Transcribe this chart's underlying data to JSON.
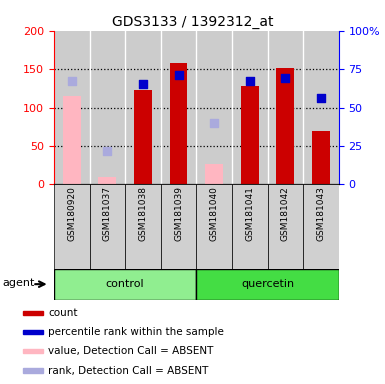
{
  "title": "GDS3133 / 1392312_at",
  "samples": [
    "GSM180920",
    "GSM181037",
    "GSM181038",
    "GSM181039",
    "GSM181040",
    "GSM181041",
    "GSM181042",
    "GSM181043"
  ],
  "count_values": [
    null,
    null,
    123,
    158,
    null,
    128,
    151,
    70
  ],
  "count_absent": [
    115,
    10,
    null,
    null,
    27,
    null,
    null,
    null
  ],
  "rank_values": [
    null,
    null,
    65,
    71,
    null,
    67,
    69,
    56
  ],
  "rank_absent": [
    67,
    22,
    null,
    null,
    40,
    null,
    null,
    null
  ],
  "groups": [
    "control",
    "control",
    "control",
    "control",
    "quercetin",
    "quercetin",
    "quercetin",
    "quercetin"
  ],
  "control_color": "#90EE90",
  "quercetin_color": "#44DD44",
  "ylim_left": [
    0,
    200
  ],
  "ylim_right": [
    0,
    100
  ],
  "yticks_left": [
    0,
    50,
    100,
    150,
    200
  ],
  "yticks_right": [
    0,
    25,
    50,
    75,
    100
  ],
  "yticklabels_right": [
    "0",
    "25",
    "50",
    "75",
    "100%"
  ],
  "bar_color_present": "#CC0000",
  "bar_color_absent": "#FFB6C1",
  "dot_color_present": "#0000CC",
  "dot_color_absent": "#AAAADD",
  "bar_width": 0.5,
  "plot_bg": "#CCCCCC",
  "xtick_bg": "#C0C0C0",
  "legend_items": [
    {
      "label": "count",
      "color": "#CC0000"
    },
    {
      "label": "percentile rank within the sample",
      "color": "#0000CC"
    },
    {
      "label": "value, Detection Call = ABSENT",
      "color": "#FFB6C1"
    },
    {
      "label": "rank, Detection Call = ABSENT",
      "color": "#AAAADD"
    }
  ]
}
